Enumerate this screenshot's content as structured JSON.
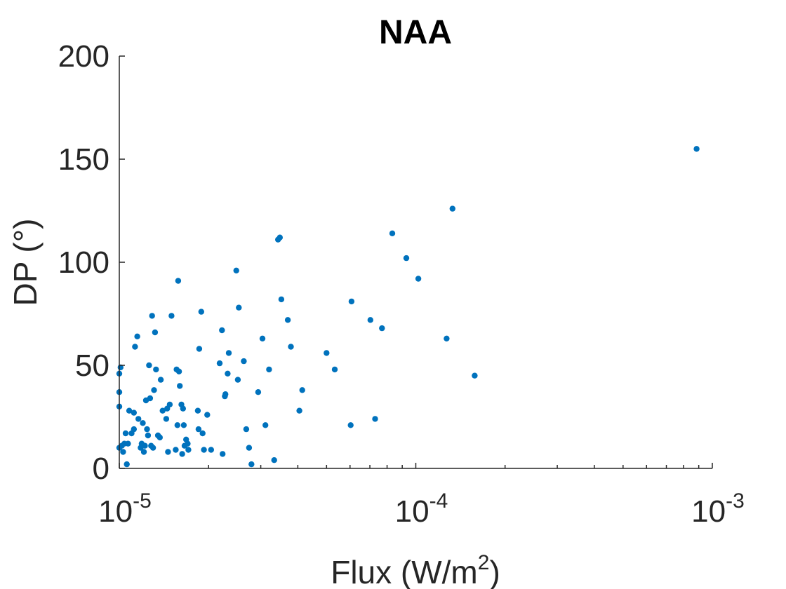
{
  "chart_data": {
    "type": "scatter",
    "title": "NAA",
    "xlabel": "Flux (W/m",
    "xlabel_sup": "2",
    "xlabel_suffix": ")",
    "ylabel": "DP (°)",
    "xscale": "log",
    "xlim": [
      1e-05,
      0.001
    ],
    "ylim": [
      0,
      200
    ],
    "grid": false,
    "marker_color": "#0072BD",
    "x_ticks": [
      {
        "value": 1e-05,
        "base": "10",
        "exp": "-5"
      },
      {
        "value": 0.0001,
        "base": "10",
        "exp": "-4"
      },
      {
        "value": 0.001,
        "base": "10",
        "exp": "-3"
      }
    ],
    "y_ticks": [
      {
        "value": 0,
        "label": "0"
      },
      {
        "value": 50,
        "label": "50"
      },
      {
        "value": 100,
        "label": "100"
      },
      {
        "value": 150,
        "label": "150"
      },
      {
        "value": 200,
        "label": "200"
      }
    ],
    "points": [
      [
        1e-05,
        46
      ],
      [
        1e-05,
        37
      ],
      [
        1e-05,
        30
      ],
      [
        1e-05,
        10
      ],
      [
        1.01e-05,
        49
      ],
      [
        1.02e-05,
        11
      ],
      [
        1.03e-05,
        8
      ],
      [
        1.04e-05,
        12
      ],
      [
        1.05e-05,
        17
      ],
      [
        1.06e-05,
        2
      ],
      [
        1.07e-05,
        12
      ],
      [
        1.08e-05,
        28
      ],
      [
        1.1e-05,
        17
      ],
      [
        1.12e-05,
        19
      ],
      [
        1.12e-05,
        27
      ],
      [
        1.13e-05,
        59
      ],
      [
        1.15e-05,
        64
      ],
      [
        1.16e-05,
        24
      ],
      [
        1.18e-05,
        10
      ],
      [
        1.19e-05,
        12
      ],
      [
        1.2e-05,
        22
      ],
      [
        1.21e-05,
        8
      ],
      [
        1.22e-05,
        11
      ],
      [
        1.23e-05,
        33
      ],
      [
        1.24e-05,
        19
      ],
      [
        1.25e-05,
        16
      ],
      [
        1.26e-05,
        50
      ],
      [
        1.27e-05,
        34
      ],
      [
        1.28e-05,
        11
      ],
      [
        1.29e-05,
        74
      ],
      [
        1.3e-05,
        10
      ],
      [
        1.31e-05,
        38
      ],
      [
        1.32e-05,
        66
      ],
      [
        1.33e-05,
        48
      ],
      [
        1.35e-05,
        16
      ],
      [
        1.37e-05,
        15
      ],
      [
        1.38e-05,
        43
      ],
      [
        1.4e-05,
        28
      ],
      [
        1.44e-05,
        24
      ],
      [
        1.45e-05,
        29
      ],
      [
        1.46e-05,
        8
      ],
      [
        1.48e-05,
        31
      ],
      [
        1.5e-05,
        74
      ],
      [
        1.55e-05,
        9
      ],
      [
        1.56e-05,
        48
      ],
      [
        1.57e-05,
        21
      ],
      [
        1.58e-05,
        91
      ],
      [
        1.59e-05,
        47
      ],
      [
        1.6e-05,
        40
      ],
      [
        1.62e-05,
        31
      ],
      [
        1.63e-05,
        7
      ],
      [
        1.64e-05,
        29
      ],
      [
        1.65e-05,
        21
      ],
      [
        1.66e-05,
        11
      ],
      [
        1.68e-05,
        14
      ],
      [
        1.7e-05,
        12
      ],
      [
        1.71e-05,
        9
      ],
      [
        1.84e-05,
        28
      ],
      [
        1.85e-05,
        19
      ],
      [
        1.86e-05,
        58
      ],
      [
        1.89e-05,
        76
      ],
      [
        1.91e-05,
        17
      ],
      [
        1.93e-05,
        9
      ],
      [
        1.98e-05,
        26
      ],
      [
        2.04e-05,
        9
      ],
      [
        2.18e-05,
        51
      ],
      [
        2.22e-05,
        67
      ],
      [
        2.23e-05,
        7
      ],
      [
        2.27e-05,
        35
      ],
      [
        2.28e-05,
        36
      ],
      [
        2.32e-05,
        46
      ],
      [
        2.34e-05,
        56
      ],
      [
        2.48e-05,
        96
      ],
      [
        2.51e-05,
        43
      ],
      [
        2.53e-05,
        78
      ],
      [
        2.63e-05,
        52
      ],
      [
        2.68e-05,
        19
      ],
      [
        2.74e-05,
        10
      ],
      [
        2.79e-05,
        2
      ],
      [
        2.94e-05,
        37
      ],
      [
        3.04e-05,
        63
      ],
      [
        3.11e-05,
        21
      ],
      [
        3.2e-05,
        48
      ],
      [
        3.33e-05,
        4
      ],
      [
        3.43e-05,
        111
      ],
      [
        3.48e-05,
        112
      ],
      [
        3.52e-05,
        82
      ],
      [
        3.7e-05,
        72
      ],
      [
        3.79e-05,
        59
      ],
      [
        4.05e-05,
        28
      ],
      [
        4.14e-05,
        38
      ],
      [
        5e-05,
        56
      ],
      [
        5.33e-05,
        48
      ],
      [
        6.03e-05,
        21
      ],
      [
        6.07e-05,
        81
      ],
      [
        7.03e-05,
        72
      ],
      [
        7.29e-05,
        24
      ],
      [
        7.69e-05,
        68
      ],
      [
        8.33e-05,
        114
      ],
      [
        9.29e-05,
        102
      ],
      [
        0.000102,
        92
      ],
      [
        0.000127,
        63
      ],
      [
        0.000133,
        126
      ],
      [
        0.000158,
        45
      ],
      [
        0.000885,
        155
      ]
    ]
  }
}
